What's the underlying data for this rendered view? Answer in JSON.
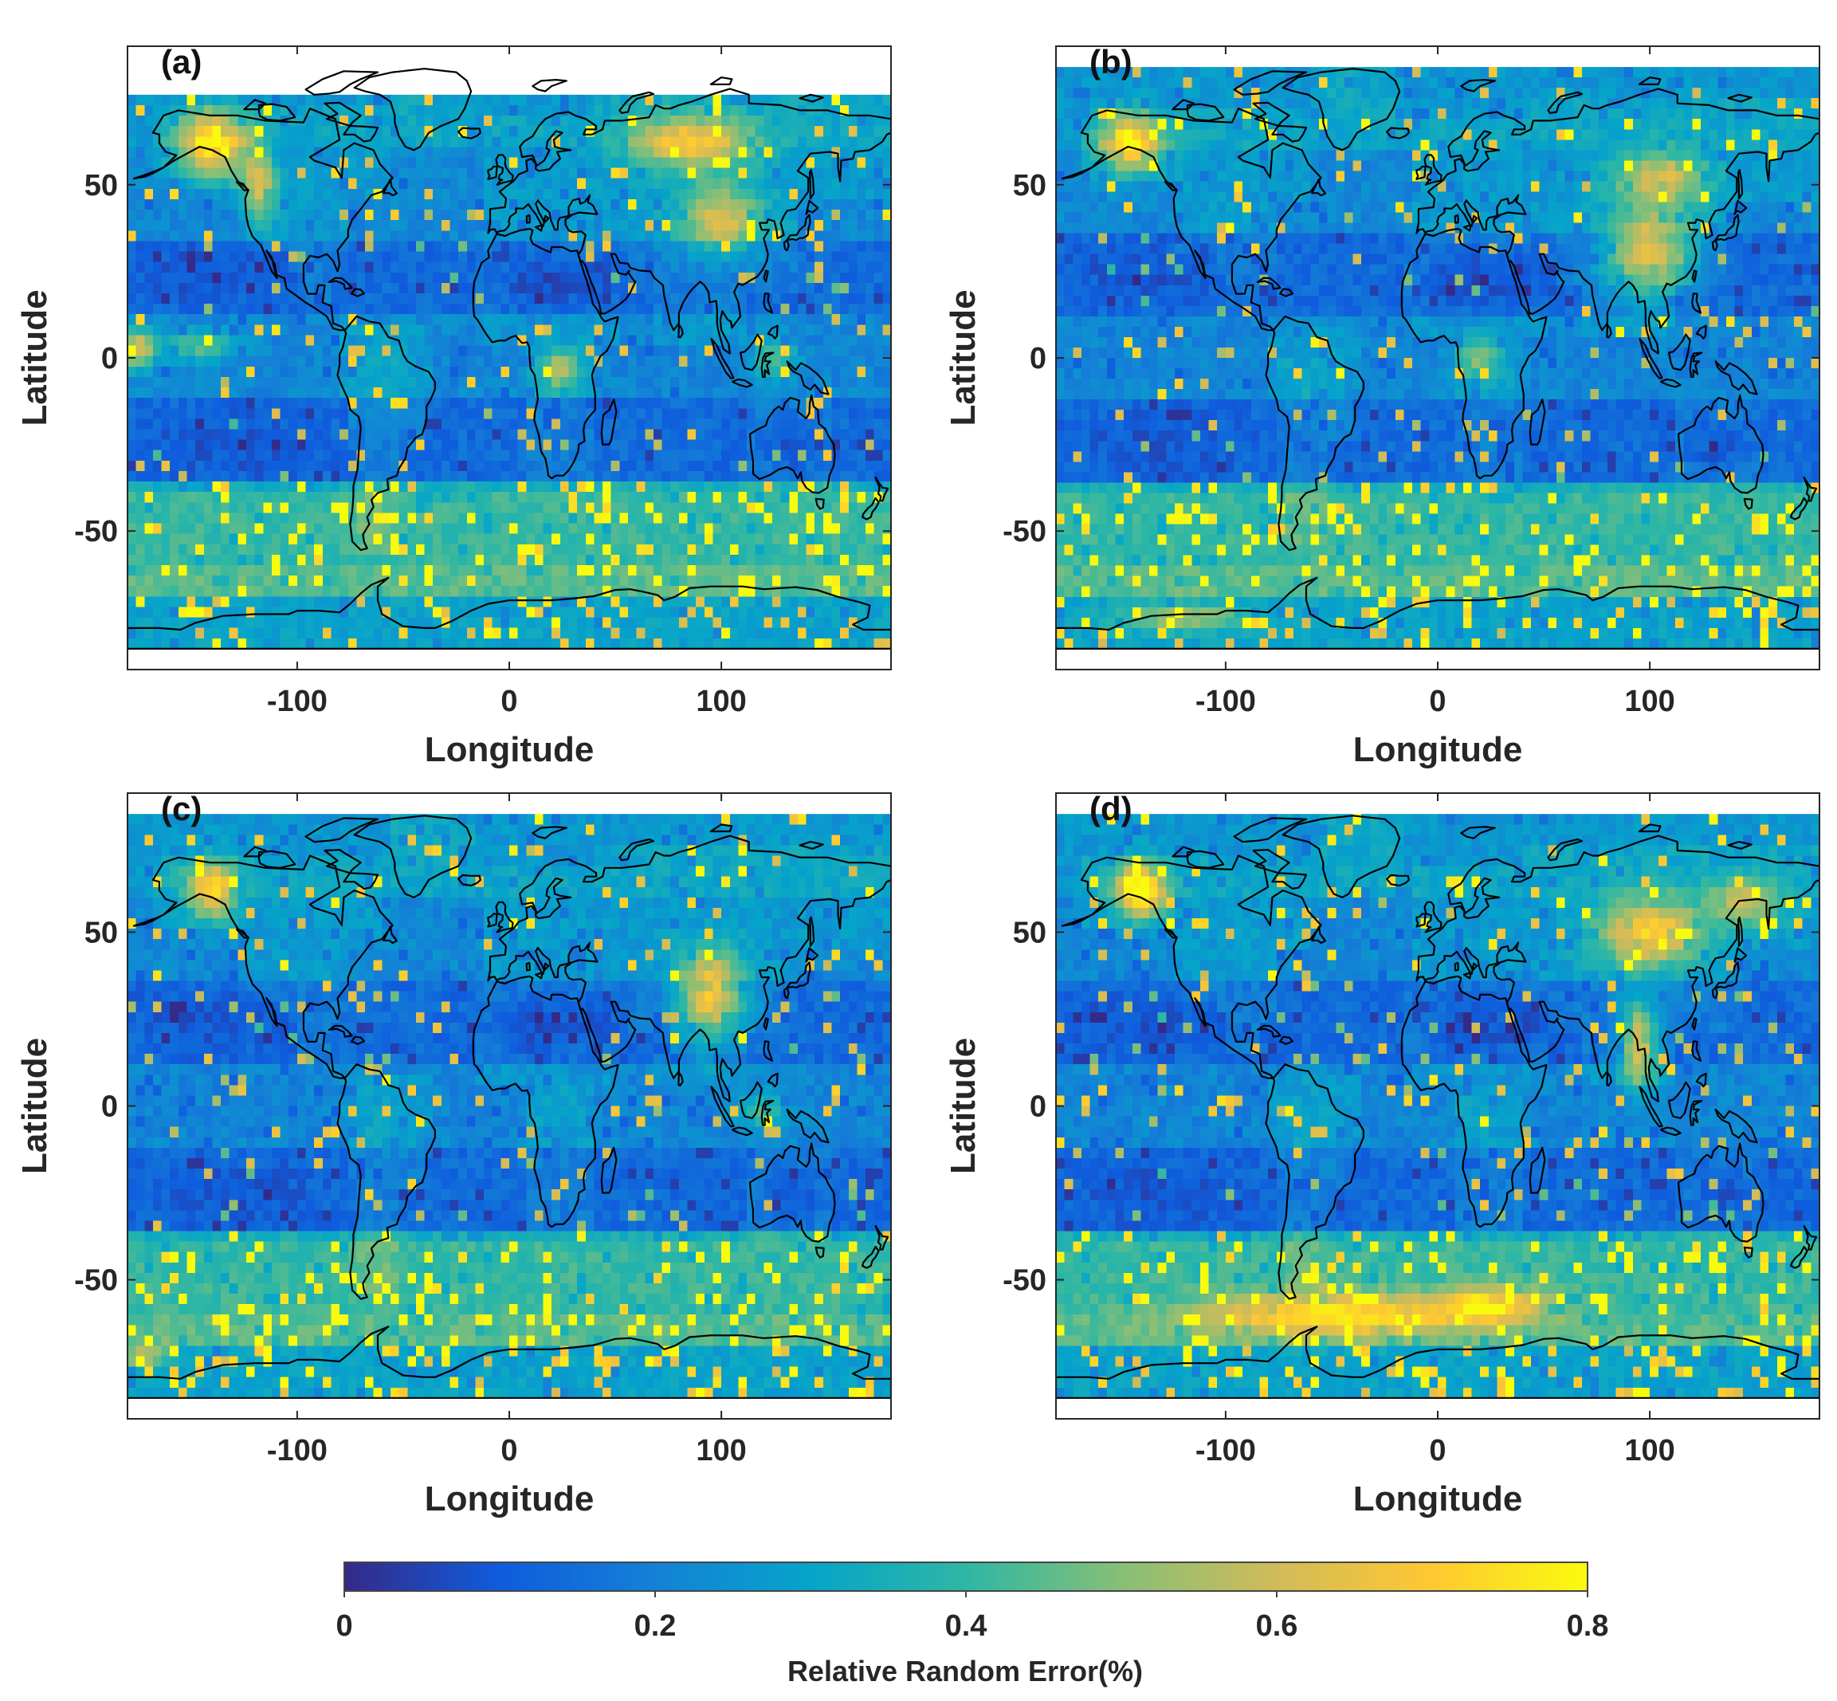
{
  "chart_data": [
    {
      "type": "heatmap",
      "panel_label": "(a)",
      "xlabel": "Longitude",
      "ylabel": "Latitude",
      "xlim": [
        -180,
        180
      ],
      "ylim": [
        -90,
        90
      ],
      "data_lat_range": [
        -84,
        76
      ],
      "xticks": [
        -100,
        0,
        100
      ],
      "yticks": [
        50,
        0,
        -50
      ],
      "colormap": "parula",
      "high_error_regions": [
        "northwestern North America",
        "Siberia",
        "Central Asia",
        "equatorial East Pacific",
        "Southern Ocean 40S-60S"
      ],
      "low_error_regions": [
        "Sahara",
        "subtropical oceans",
        "Australia"
      ]
    },
    {
      "type": "heatmap",
      "panel_label": "(b)",
      "xlabel": "Longitude",
      "ylabel": "Latitude",
      "xlim": [
        -180,
        180
      ],
      "ylim": [
        -90,
        90
      ],
      "data_lat_range": [
        -84,
        84
      ],
      "xticks": [
        -100,
        0,
        100
      ],
      "yticks": [
        50,
        0,
        -50
      ],
      "colormap": "parula",
      "high_error_regions": [
        "Alaska",
        "East Asia",
        "Southern Ocean 40S-60S"
      ],
      "low_error_regions": [
        "Sahara",
        "subtropical oceans",
        "Australia"
      ]
    },
    {
      "type": "heatmap",
      "panel_label": "(c)",
      "xlabel": "Longitude",
      "ylabel": "Latitude",
      "xlim": [
        -180,
        180
      ],
      "ylim": [
        -90,
        90
      ],
      "data_lat_range": [
        -84,
        84
      ],
      "xticks": [
        -100,
        0,
        100
      ],
      "yticks": [
        50,
        0,
        -50
      ],
      "colormap": "parula",
      "high_error_regions": [
        "Alaska",
        "South and East Asia",
        "Southern Ocean 40S-65S"
      ],
      "low_error_regions": [
        "Sahara",
        "subtropical oceans",
        "Australia"
      ]
    },
    {
      "type": "heatmap",
      "panel_label": "(d)",
      "xlabel": "Longitude",
      "ylabel": "Latitude",
      "xlim": [
        -180,
        180
      ],
      "ylim": [
        -90,
        90
      ],
      "data_lat_range": [
        -84,
        84
      ],
      "xticks": [
        -100,
        0,
        100
      ],
      "yticks": [
        50,
        0,
        -50
      ],
      "colormap": "parula",
      "high_error_regions": [
        "Alaska",
        "Central and East Asia",
        "Southeast Asia",
        "Southern Ocean 40S-60S"
      ],
      "low_error_regions": [
        "Sahara",
        "subtropical oceans",
        "Australia"
      ]
    }
  ],
  "colorbar": {
    "label": "Relative Random Error(%)",
    "min": 0,
    "max": 0.8,
    "ticks": [
      "0",
      "0.2",
      "0.4",
      "0.6",
      "0.8"
    ],
    "colors": [
      "#352a87",
      "#0f5cdd",
      "#1481d6",
      "#06a4ca",
      "#2eb7a4",
      "#87bf77",
      "#d1bb59",
      "#fec832",
      "#f9fb0e"
    ]
  }
}
